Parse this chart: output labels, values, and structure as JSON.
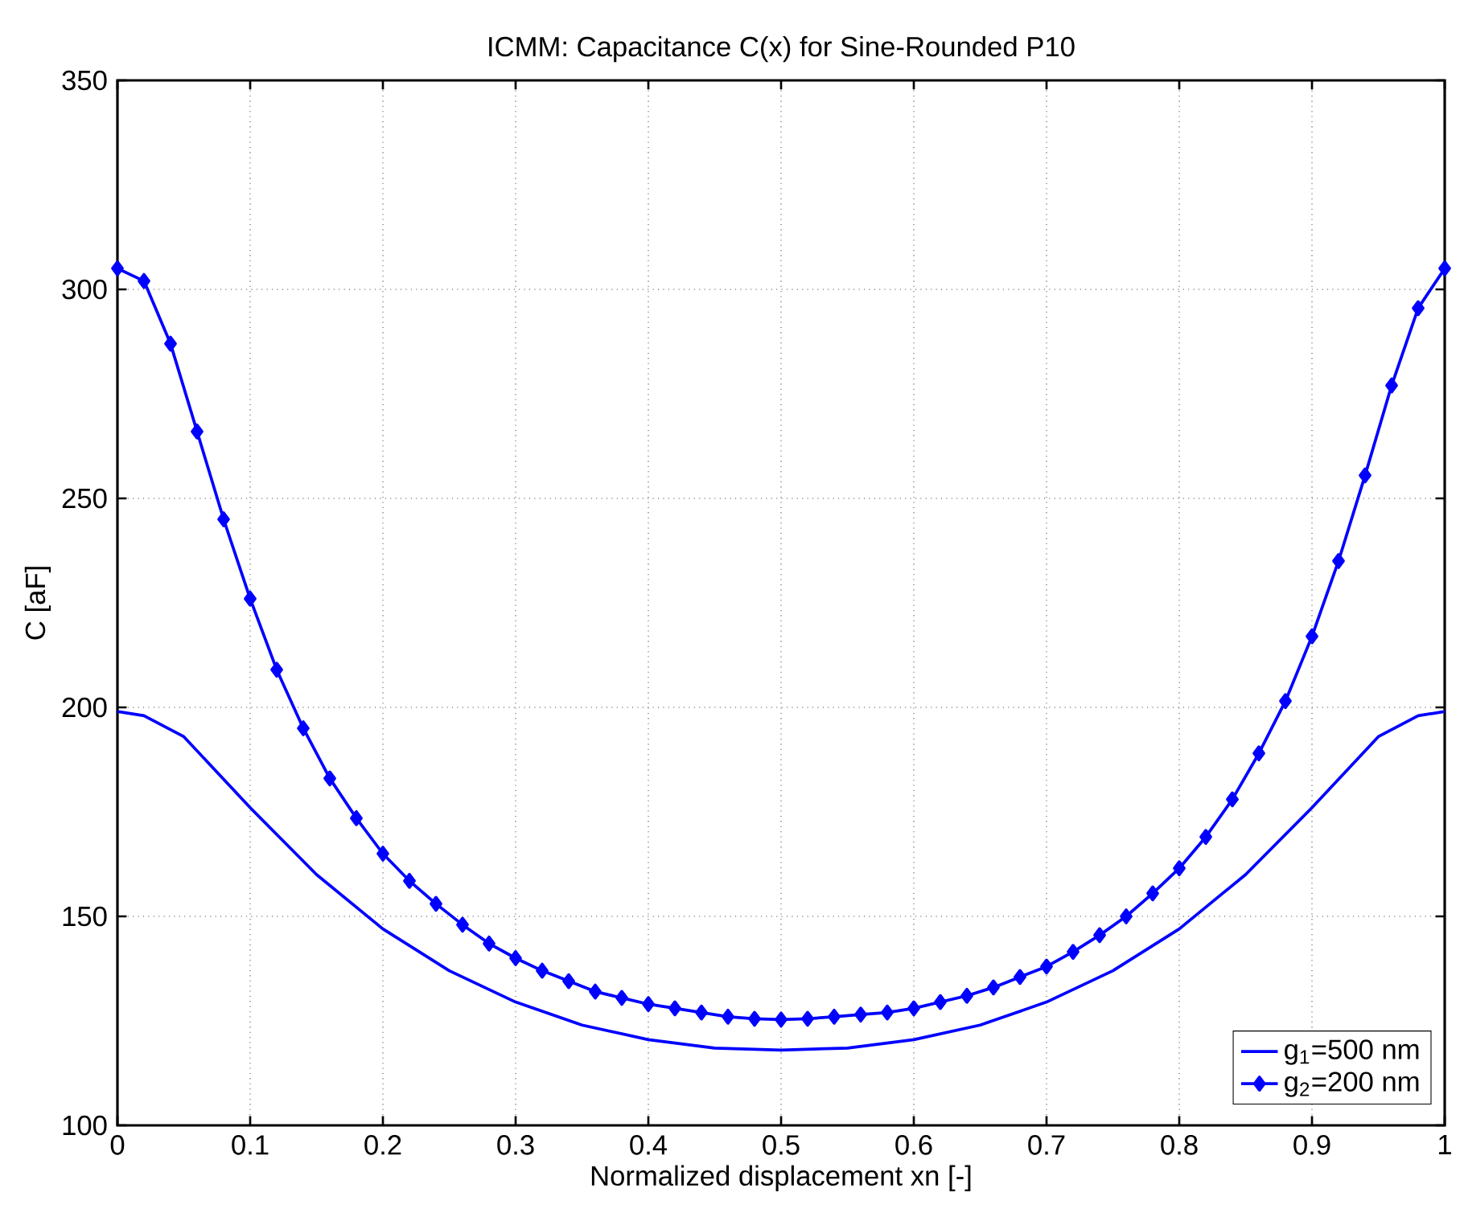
{
  "chart_data": {
    "type": "line",
    "title": "ICMM: Capacitance C(x) for Sine-Rounded P10",
    "xlabel": "Normalized displacement xn [-]",
    "ylabel": "C [aF]",
    "series": [
      {
        "name": "g$_{1}$=500 nm",
        "color": "#0000ff",
        "marker": "none",
        "x": [
          0,
          0.02,
          0.05,
          0.1,
          0.15,
          0.2,
          0.25,
          0.3,
          0.35,
          0.4,
          0.45,
          0.5,
          0.55,
          0.6,
          0.65,
          0.7,
          0.75,
          0.8,
          0.85,
          0.9,
          0.95,
          0.98,
          1
        ],
        "values": [
          199,
          198,
          193,
          176,
          160,
          147,
          137,
          129.5,
          124,
          120.5,
          118.5,
          118,
          118.5,
          120.5,
          124,
          129.5,
          137,
          147,
          160,
          176,
          193,
          198,
          199
        ]
      },
      {
        "name": "g$_{2}$=200 nm",
        "color": "#0000ff",
        "marker": "diamond",
        "x": [
          0,
          0.02,
          0.04,
          0.06,
          0.08,
          0.1,
          0.12,
          0.14,
          0.16,
          0.18,
          0.2,
          0.22,
          0.24,
          0.26,
          0.28,
          0.3,
          0.32,
          0.34,
          0.36,
          0.38,
          0.4,
          0.42,
          0.44,
          0.46,
          0.48,
          0.5,
          0.52,
          0.54,
          0.56,
          0.58,
          0.6,
          0.62,
          0.64,
          0.66,
          0.68,
          0.7,
          0.72,
          0.74,
          0.76,
          0.78,
          0.8,
          0.82,
          0.84,
          0.86,
          0.88,
          0.9,
          0.92,
          0.94,
          0.96,
          0.98,
          1
        ],
        "values": [
          305,
          302,
          287,
          266,
          245,
          226,
          209,
          195,
          183,
          173.5,
          165,
          158.5,
          153,
          148,
          143.5,
          140,
          137,
          134.5,
          132,
          130.5,
          129,
          128,
          127,
          126,
          125.5,
          125.3,
          125.5,
          126,
          126.5,
          127,
          128,
          129.5,
          131,
          133,
          135.5,
          138,
          141.5,
          145.5,
          150,
          155.5,
          161.5,
          169,
          178,
          189,
          201.5,
          217,
          235,
          255.5,
          277,
          295.5,
          305
        ]
      }
    ],
    "xlim": [
      0,
      1
    ],
    "ylim": [
      100,
      350
    ],
    "xticks": [
      0,
      0.1,
      0.2,
      0.3,
      0.4,
      0.5,
      0.6,
      0.7,
      0.8,
      0.9,
      1
    ],
    "yticks": [
      100,
      150,
      200,
      250,
      300,
      350
    ],
    "grid": true,
    "legend": "bottom right",
    "line_style": "solid"
  }
}
